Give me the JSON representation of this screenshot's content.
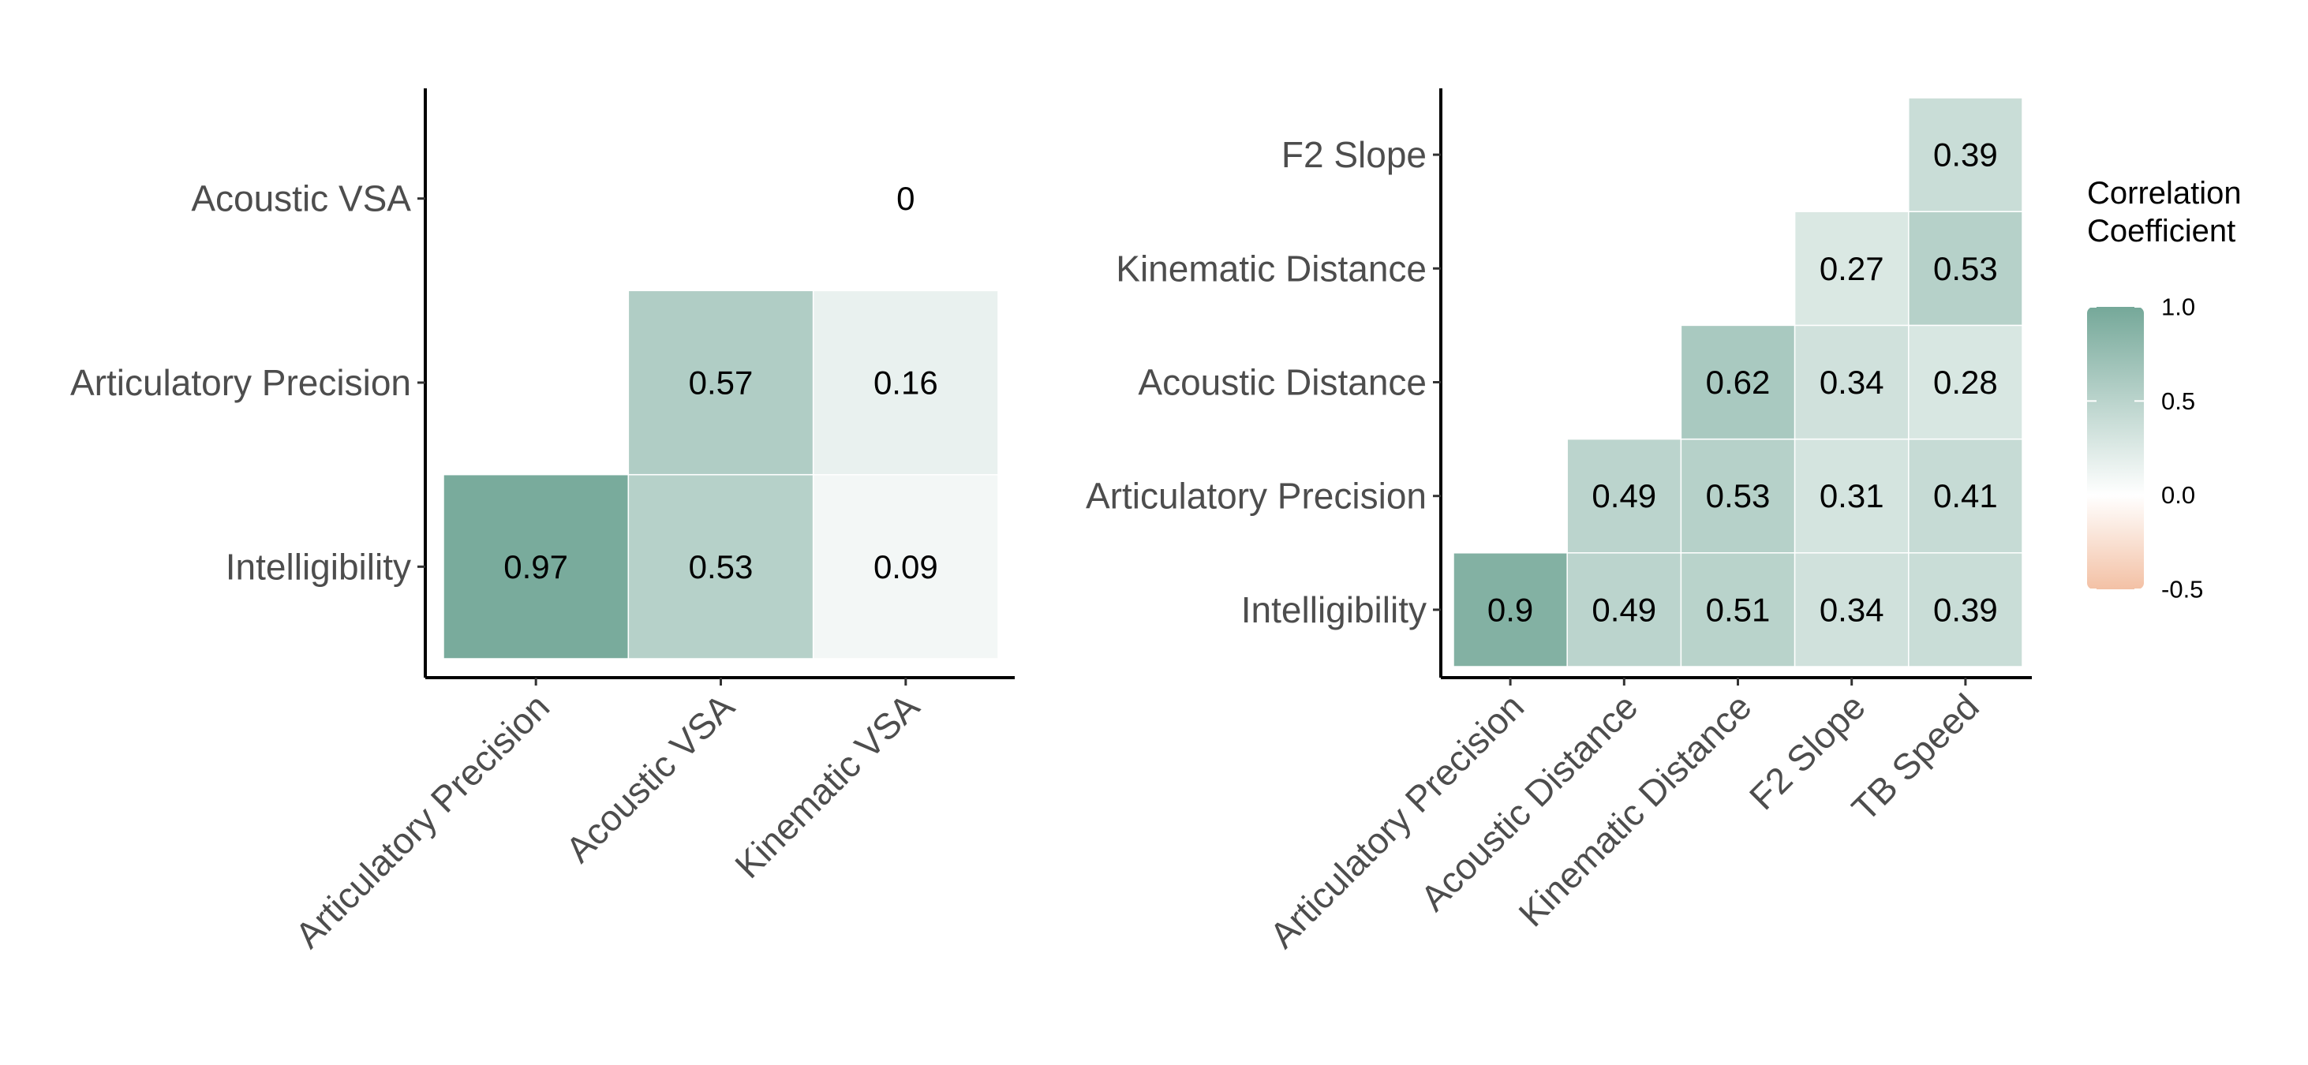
{
  "chart_data": [
    {
      "type": "heatmap",
      "title": "",
      "xlabel": "",
      "ylabel": "",
      "x_categories": [
        "Articulatory Precision",
        "Acoustic VSA",
        "Kinematic VSA"
      ],
      "y_categories": [
        "Intelligibility",
        "Articulatory Precision",
        "Acoustic VSA"
      ],
      "cells": [
        {
          "x": "Articulatory Precision",
          "y": "Intelligibility",
          "value": 0.97,
          "label": "0.97"
        },
        {
          "x": "Acoustic VSA",
          "y": "Intelligibility",
          "value": 0.53,
          "label": "0.53"
        },
        {
          "x": "Kinematic VSA",
          "y": "Intelligibility",
          "value": 0.09,
          "label": "0.09"
        },
        {
          "x": "Acoustic VSA",
          "y": "Articulatory Precision",
          "value": 0.57,
          "label": "0.57"
        },
        {
          "x": "Kinematic VSA",
          "y": "Articulatory Precision",
          "value": 0.16,
          "label": "0.16"
        },
        {
          "x": "Kinematic VSA",
          "y": "Acoustic VSA",
          "value": 0,
          "label": "0"
        }
      ]
    },
    {
      "type": "heatmap",
      "title": "",
      "xlabel": "",
      "ylabel": "",
      "x_categories": [
        "Articulatory Precision",
        "Acoustic Distance",
        "Kinematic Distance",
        "F2 Slope",
        "TB Speed"
      ],
      "y_categories": [
        "Intelligibility",
        "Articulatory Precision",
        "Acoustic Distance",
        "Kinematic Distance",
        "F2 Slope"
      ],
      "cells": [
        {
          "x": "Articulatory Precision",
          "y": "Intelligibility",
          "value": 0.9,
          "label": "0.9"
        },
        {
          "x": "Acoustic Distance",
          "y": "Intelligibility",
          "value": 0.49,
          "label": "0.49"
        },
        {
          "x": "Kinematic Distance",
          "y": "Intelligibility",
          "value": 0.51,
          "label": "0.51"
        },
        {
          "x": "F2 Slope",
          "y": "Intelligibility",
          "value": 0.34,
          "label": "0.34"
        },
        {
          "x": "TB Speed",
          "y": "Intelligibility",
          "value": 0.39,
          "label": "0.39"
        },
        {
          "x": "Acoustic Distance",
          "y": "Articulatory Precision",
          "value": 0.49,
          "label": "0.49"
        },
        {
          "x": "Kinematic Distance",
          "y": "Articulatory Precision",
          "value": 0.53,
          "label": "0.53"
        },
        {
          "x": "F2 Slope",
          "y": "Articulatory Precision",
          "value": 0.31,
          "label": "0.31"
        },
        {
          "x": "TB Speed",
          "y": "Articulatory Precision",
          "value": 0.41,
          "label": "0.41"
        },
        {
          "x": "Kinematic Distance",
          "y": "Acoustic Distance",
          "value": 0.62,
          "label": "0.62"
        },
        {
          "x": "F2 Slope",
          "y": "Acoustic Distance",
          "value": 0.34,
          "label": "0.34"
        },
        {
          "x": "TB Speed",
          "y": "Acoustic Distance",
          "value": 0.28,
          "label": "0.28"
        },
        {
          "x": "F2 Slope",
          "y": "Kinematic Distance",
          "value": 0.27,
          "label": "0.27"
        },
        {
          "x": "TB Speed",
          "y": "Kinematic Distance",
          "value": 0.53,
          "label": "0.53"
        },
        {
          "x": "TB Speed",
          "y": "F2 Slope",
          "value": 0.39,
          "label": "0.39"
        }
      ]
    }
  ],
  "legend": {
    "title_lines": [
      "Correlation",
      "Coefficient"
    ],
    "ticks": [
      "1.0",
      "0.5",
      "0.0",
      "-0.5"
    ],
    "tick_values": [
      1.0,
      0.5,
      0.0,
      -0.5
    ],
    "range": [
      -0.5,
      1.0
    ],
    "placement": "right"
  },
  "colors": {
    "high": "#75a899",
    "mid": "#ffffff",
    "low": "#f3c1a5",
    "axis": "#000000",
    "tick_text": "#4d4d4d",
    "cell_text": "#000000"
  }
}
